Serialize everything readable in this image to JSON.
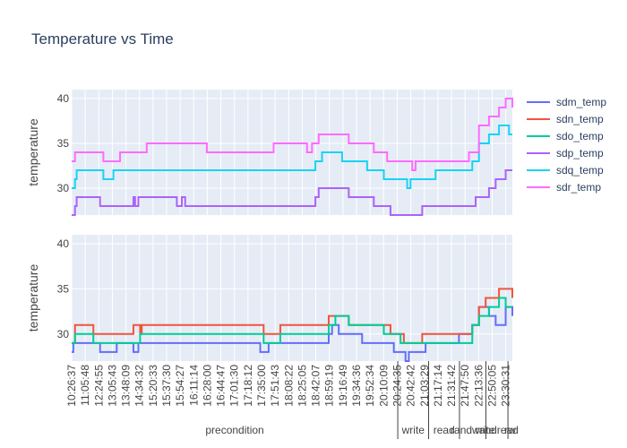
{
  "chart_data": {
    "type": "line",
    "title": "Temperature vs Time",
    "ylabel": "temperature",
    "x_ticks": [
      "10:26:37",
      "11:05:48",
      "12:24:55",
      "13:05:43",
      "13:48:09",
      "14:34:32",
      "15:20:33",
      "15:37:30",
      "15:54:27",
      "16:11:14",
      "16:28:00",
      "16:44:47",
      "17:01:30",
      "17:18:12",
      "17:35:00",
      "17:51:43",
      "18:08:22",
      "18:25:05",
      "18:42:07",
      "18:59:19",
      "19:16:49",
      "19:34:36",
      "19:52:34",
      "20:10:09",
      "20:24:35",
      "20:42:42",
      "21:03:29",
      "21:17:14",
      "21:31:42",
      "21:47:50",
      "22:13:36",
      "22:50:05",
      "23:30:31"
    ],
    "phases": [
      {
        "label": "precondition",
        "start": 0,
        "end": 0.74
      },
      {
        "label": "write",
        "start": 0.74,
        "end": 0.81
      },
      {
        "label": "read",
        "start": 0.81,
        "end": 0.88
      },
      {
        "label": "randwrite",
        "start": 0.88,
        "end": 0.94
      },
      {
        "label": "randread",
        "start": 0.94,
        "end": 0.99
      },
      {
        "label": "rw",
        "start": 0.99,
        "end": 1.0
      }
    ],
    "ylim": [
      27,
      41
    ],
    "yticks": [
      30,
      35,
      40
    ],
    "grid": true,
    "legend_position": "right",
    "subplots": [
      {
        "series": [
          {
            "name": "sdp_temp",
            "color": "#ab63fa",
            "points": [
              [
                0,
                27
              ],
              [
                0.01,
                28
              ],
              [
                0.015,
                29
              ],
              [
                0.08,
                29
              ],
              [
                0.085,
                28
              ],
              [
                0.18,
                28
              ],
              [
                0.185,
                29
              ],
              [
                0.19,
                28
              ],
              [
                0.2,
                29
              ],
              [
                0.31,
                29
              ],
              [
                0.315,
                28
              ],
              [
                0.33,
                29
              ],
              [
                0.34,
                28
              ],
              [
                0.72,
                28
              ],
              [
                0.73,
                29
              ],
              [
                0.74,
                30
              ],
              [
                0.82,
                30
              ],
              [
                0.83,
                29
              ],
              [
                0.9,
                29
              ],
              [
                0.905,
                28
              ],
              [
                0.95,
                28
              ],
              [
                0.955,
                27
              ],
              [
                1.04,
                27
              ],
              [
                1.05,
                28
              ],
              [
                1.2,
                28
              ],
              [
                1.21,
                29
              ],
              [
                1.25,
                30
              ],
              [
                1.27,
                31
              ],
              [
                1.3,
                32
              ],
              [
                1.32,
                32
              ]
            ]
          },
          {
            "name": "sdq_temp",
            "color": "#19d3f3",
            "points": [
              [
                0,
                30
              ],
              [
                0.01,
                31
              ],
              [
                0.015,
                32
              ],
              [
                0.09,
                32
              ],
              [
                0.095,
                31
              ],
              [
                0.12,
                31
              ],
              [
                0.125,
                32
              ],
              [
                0.72,
                32
              ],
              [
                0.73,
                33
              ],
              [
                0.75,
                34
              ],
              [
                0.8,
                34
              ],
              [
                0.81,
                33
              ],
              [
                0.88,
                33
              ],
              [
                0.885,
                32
              ],
              [
                0.93,
                32
              ],
              [
                0.935,
                31
              ],
              [
                1.0,
                31
              ],
              [
                1.005,
                30
              ],
              [
                1.015,
                31
              ],
              [
                1.08,
                31
              ],
              [
                1.09,
                32
              ],
              [
                1.18,
                32
              ],
              [
                1.2,
                33
              ],
              [
                1.22,
                35
              ],
              [
                1.25,
                36
              ],
              [
                1.28,
                37
              ],
              [
                1.31,
                36
              ],
              [
                1.32,
                36
              ]
            ]
          },
          {
            "name": "sdr_temp",
            "color": "#ff6bff",
            "points": [
              [
                0,
                33
              ],
              [
                0.01,
                34
              ],
              [
                0.09,
                34
              ],
              [
                0.095,
                33
              ],
              [
                0.14,
                33
              ],
              [
                0.145,
                34
              ],
              [
                0.22,
                34
              ],
              [
                0.225,
                35
              ],
              [
                0.4,
                35
              ],
              [
                0.405,
                34
              ],
              [
                0.6,
                34
              ],
              [
                0.605,
                35
              ],
              [
                0.7,
                35
              ],
              [
                0.705,
                34
              ],
              [
                0.72,
                35
              ],
              [
                0.74,
                36
              ],
              [
                0.82,
                36
              ],
              [
                0.83,
                35
              ],
              [
                0.9,
                35
              ],
              [
                0.905,
                34
              ],
              [
                0.94,
                34
              ],
              [
                0.945,
                33
              ],
              [
                1.01,
                33
              ],
              [
                1.02,
                32
              ],
              [
                1.03,
                33
              ],
              [
                1.18,
                33
              ],
              [
                1.19,
                34
              ],
              [
                1.22,
                37
              ],
              [
                1.25,
                38
              ],
              [
                1.28,
                39
              ],
              [
                1.3,
                40
              ],
              [
                1.32,
                39
              ]
            ]
          }
        ]
      },
      {
        "series": [
          {
            "name": "sdm_temp",
            "color": "#636efa",
            "points": [
              [
                0,
                28
              ],
              [
                0.005,
                29
              ],
              [
                0.08,
                29
              ],
              [
                0.085,
                28
              ],
              [
                0.13,
                28
              ],
              [
                0.135,
                29
              ],
              [
                0.18,
                29
              ],
              [
                0.185,
                28
              ],
              [
                0.2,
                29
              ],
              [
                0.56,
                29
              ],
              [
                0.565,
                28
              ],
              [
                0.59,
                29
              ],
              [
                0.76,
                29
              ],
              [
                0.77,
                30
              ],
              [
                0.78,
                31
              ],
              [
                0.8,
                30
              ],
              [
                0.86,
                30
              ],
              [
                0.87,
                29
              ],
              [
                0.96,
                29
              ],
              [
                0.965,
                28
              ],
              [
                0.99,
                28
              ],
              [
                1.0,
                27
              ],
              [
                1.01,
                28
              ],
              [
                1.05,
                28
              ],
              [
                1.06,
                29
              ],
              [
                1.15,
                29
              ],
              [
                1.16,
                30
              ],
              [
                1.2,
                31
              ],
              [
                1.22,
                33
              ],
              [
                1.25,
                32
              ],
              [
                1.27,
                31
              ],
              [
                1.3,
                33
              ],
              [
                1.32,
                32
              ]
            ]
          },
          {
            "name": "sdn_temp",
            "color": "#ef553b",
            "points": [
              [
                0,
                29
              ],
              [
                0.01,
                31
              ],
              [
                0.06,
                31
              ],
              [
                0.065,
                30
              ],
              [
                0.18,
                30
              ],
              [
                0.185,
                31
              ],
              [
                0.2,
                31
              ],
              [
                0.205,
                30
              ],
              [
                0.21,
                31
              ],
              [
                0.57,
                31
              ],
              [
                0.575,
                30
              ],
              [
                0.62,
                30
              ],
              [
                0.625,
                31
              ],
              [
                0.76,
                31
              ],
              [
                0.77,
                32
              ],
              [
                0.82,
                32
              ],
              [
                0.83,
                31
              ],
              [
                0.95,
                31
              ],
              [
                0.955,
                30
              ],
              [
                0.99,
                30
              ],
              [
                0.995,
                29
              ],
              [
                1.04,
                29
              ],
              [
                1.05,
                30
              ],
              [
                1.18,
                30
              ],
              [
                1.2,
                31
              ],
              [
                1.22,
                33
              ],
              [
                1.24,
                34
              ],
              [
                1.28,
                35
              ],
              [
                1.3,
                35
              ],
              [
                1.32,
                34
              ]
            ]
          },
          {
            "name": "sdo_temp",
            "color": "#00cc96",
            "points": [
              [
                0,
                29
              ],
              [
                0.01,
                30
              ],
              [
                0.06,
                30
              ],
              [
                0.065,
                29
              ],
              [
                0.2,
                29
              ],
              [
                0.205,
                30
              ],
              [
                0.57,
                30
              ],
              [
                0.575,
                29
              ],
              [
                0.62,
                29
              ],
              [
                0.625,
                30
              ],
              [
                0.76,
                30
              ],
              [
                0.77,
                31
              ],
              [
                0.79,
                32
              ],
              [
                0.82,
                32
              ],
              [
                0.83,
                31
              ],
              [
                0.93,
                31
              ],
              [
                0.935,
                30
              ],
              [
                0.98,
                30
              ],
              [
                0.985,
                29
              ],
              [
                1.04,
                29
              ],
              [
                1.05,
                29
              ],
              [
                1.18,
                29
              ],
              [
                1.2,
                31
              ],
              [
                1.22,
                32
              ],
              [
                1.25,
                33
              ],
              [
                1.28,
                34
              ],
              [
                1.3,
                33
              ],
              [
                1.32,
                33
              ]
            ]
          }
        ]
      }
    ]
  },
  "legend_order": [
    "sdm_temp",
    "sdn_temp",
    "sdo_temp",
    "sdp_temp",
    "sdq_temp",
    "sdr_temp"
  ],
  "legend_colors": {
    "sdm_temp": "#636efa",
    "sdn_temp": "#ef553b",
    "sdo_temp": "#00cc96",
    "sdp_temp": "#ab63fa",
    "sdq_temp": "#19d3f3",
    "sdr_temp": "#ff6bff"
  }
}
